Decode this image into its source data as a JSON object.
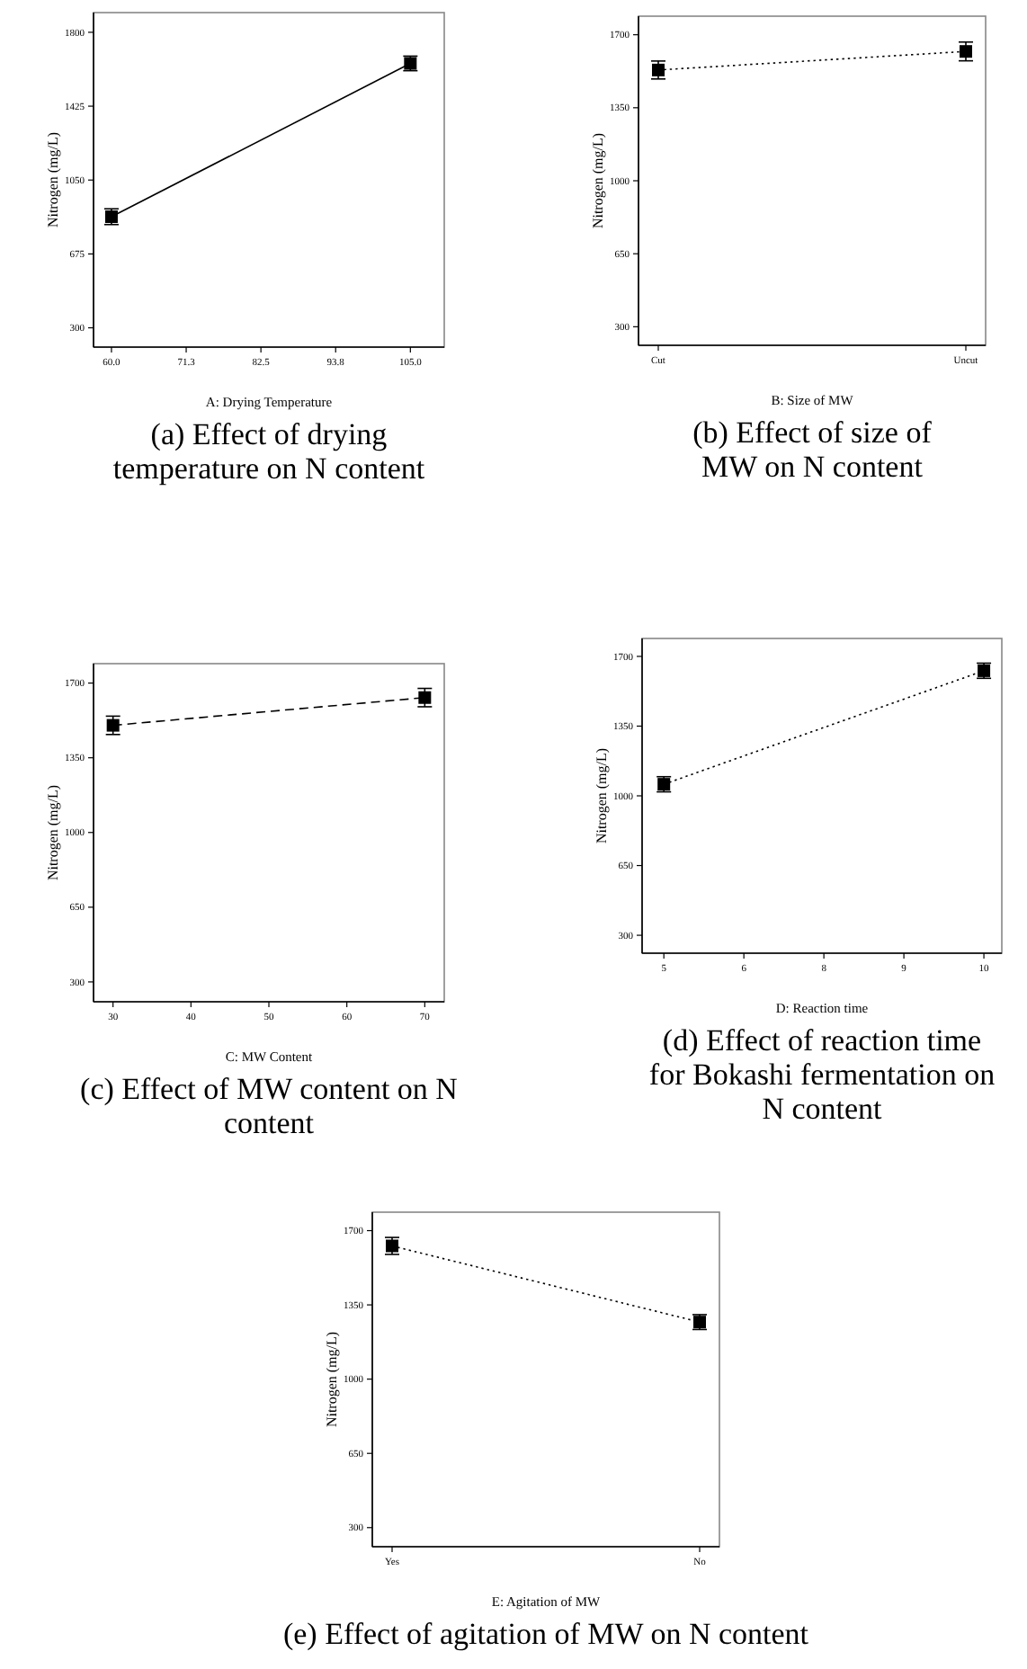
{
  "chart_data": [
    {
      "type": "line",
      "title": "(a) Effect of drying temperature on N content",
      "xlabel": "A: Drying Temperature",
      "ylabel": "Nitrogen (mg/L)",
      "x": [
        60,
        105
      ],
      "series": [
        {
          "color": "#000000",
          "values": [
            864,
            1642
          ],
          "errors": [
            40,
            37
          ]
        }
      ],
      "xlim": [
        57.3,
        110.1
      ],
      "xticks": [
        {
          "value": 60,
          "label": "60.0"
        },
        {
          "value": 71.25,
          "label": "71.3"
        },
        {
          "value": 82.5,
          "label": "82.5"
        },
        {
          "value": 93.75,
          "label": "93.8"
        },
        {
          "value": 105,
          "label": "105.0"
        }
      ],
      "ylim": [
        202,
        1900
      ],
      "yticks": [
        300,
        675,
        1050,
        1425,
        1800
      ],
      "marker": "square",
      "line_style": "solid"
    },
    {
      "type": "line",
      "title": "(b) Effect of size of MW on N content",
      "xlabel": "B: Size of MW",
      "ylabel": "Nitrogen (mg/L)",
      "categories": [
        "Cut",
        "Uncut"
      ],
      "series": [
        {
          "color": "#000000",
          "values": [
            1531,
            1620
          ],
          "errors": [
            43,
            45
          ]
        }
      ],
      "ylim": [
        211,
        1789
      ],
      "yticks": [
        300,
        650,
        1000,
        1350,
        1700
      ],
      "marker": "square",
      "line_style": "dotted"
    },
    {
      "type": "line",
      "title": "(c) Effect of MW content on N content",
      "xlabel": "C: MW Content",
      "ylabel": "Nitrogen (mg/L)",
      "x": [
        30,
        70
      ],
      "series": [
        {
          "color": "#000000",
          "values": [
            1502,
            1632
          ],
          "errors": [
            43,
            43
          ]
        }
      ],
      "xlim": [
        27.5,
        72.5
      ],
      "xticks": [
        30,
        40,
        50,
        60,
        70
      ],
      "ylim": [
        207,
        1791
      ],
      "yticks": [
        300,
        650,
        1000,
        1350,
        1700
      ],
      "marker": "square",
      "line_style": "dashed"
    },
    {
      "type": "line",
      "title": "(d) Effect of reaction time for Bokashi fermentation on N content",
      "xlabel": "D: Reaction time",
      "ylabel": "Nitrogen (mg/L)",
      "x": [
        5,
        10
      ],
      "series": [
        {
          "color": "#000000",
          "values": [
            1058,
            1628
          ],
          "errors": [
            38,
            38
          ]
        }
      ],
      "xlim": [
        4.66,
        10.28
      ],
      "xticks": [
        5,
        {
          "value": 6.25,
          "label": "6"
        },
        {
          "value": 7.5,
          "label": "8"
        },
        {
          "value": 8.75,
          "label": "9"
        },
        10
      ],
      "ylim": [
        210,
        1790
      ],
      "yticks": [
        300,
        650,
        1000,
        1350,
        1700
      ],
      "marker": "square",
      "line_style": "dotted"
    },
    {
      "type": "line",
      "title": "(e) Effect of agitation of MW on N content",
      "xlabel": "E: Agitation of MW",
      "ylabel": "Nitrogen (mg/L)",
      "categories": [
        "Yes",
        "No"
      ],
      "series": [
        {
          "color": "#000000",
          "values": [
            1628,
            1269
          ],
          "errors": [
            40,
            35
          ]
        }
      ],
      "ylim": [
        210,
        1787
      ],
      "yticks": [
        300,
        650,
        1000,
        1350,
        1700
      ],
      "marker": "square",
      "line_style": "dotted"
    }
  ]
}
